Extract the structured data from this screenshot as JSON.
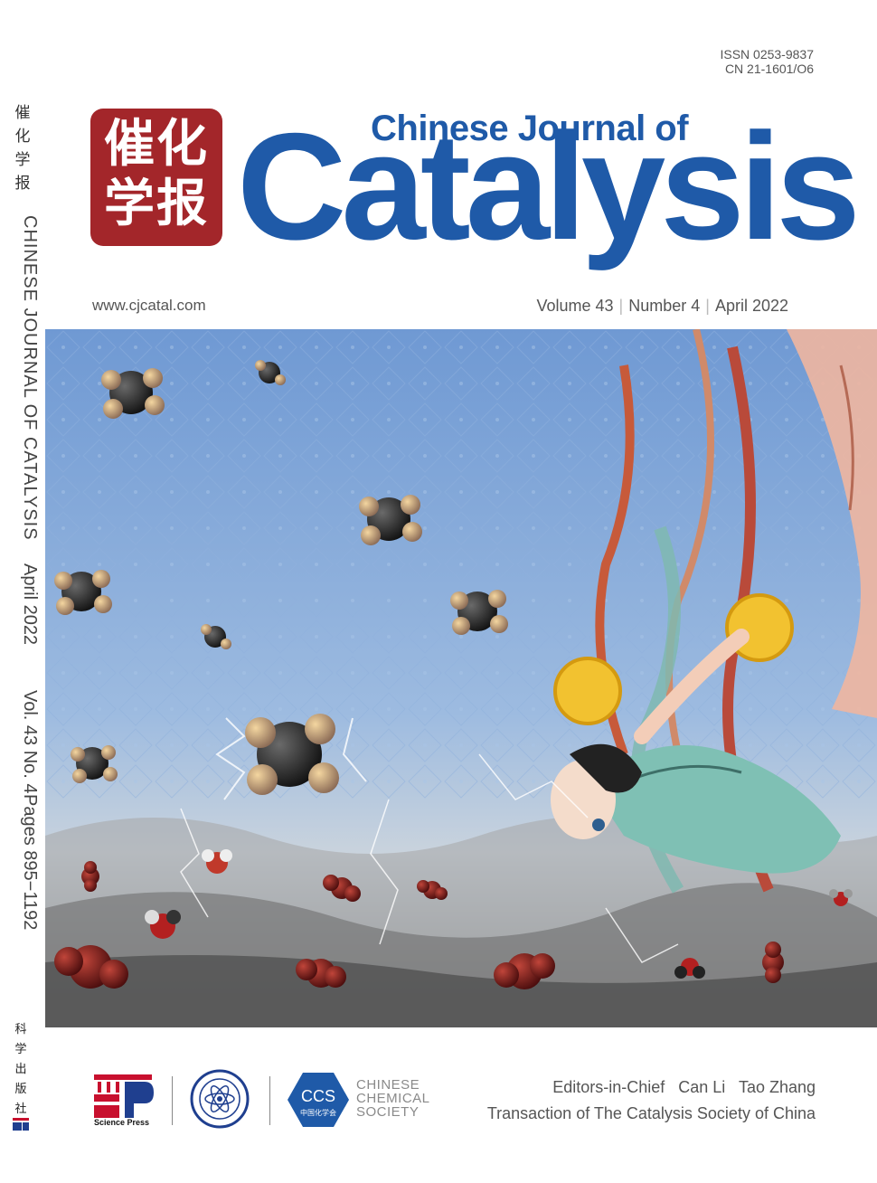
{
  "spine": {
    "chinese_title": "催\n化\n学\n报",
    "english_title": "CHINESE JOURNAL OF CATALYSIS",
    "date": "April 2022",
    "volume_issue": "Vol. 43 No. 4",
    "pages": "Pages 895−1192",
    "publisher_cn": "科\n学\n出\n版\n社"
  },
  "header": {
    "issn": "ISSN  0253-9837",
    "cn": "CN  21-1601/O6",
    "seal_text": "催化\n学报",
    "title_small": "Chinese Journal of",
    "title_big": "Catalysis",
    "url": "www.cjcatal.com",
    "volume": "Volume 43",
    "number": "Number 4",
    "date": "April 2022"
  },
  "art": {
    "molecules": [
      "C2H4",
      "CH4",
      "C2H4",
      "C2H4",
      "C2H4",
      "C2H4",
      "C2H4",
      "C2H4",
      "CO2",
      "H2O",
      "H2O",
      "CO2",
      "CO2",
      "CO2",
      "CO2",
      "CO2",
      "CO2",
      "H2O",
      "CO2"
    ]
  },
  "footer": {
    "science_press": "Science Press",
    "ccs_abbr": "CCS",
    "ccs_cn": "中国化学会",
    "ccs_name": "CHINESE\nCHEMICAL\nSOCIETY",
    "editors": "Editors-in-Chief   Can Li   Tao Zhang",
    "transaction": "Transaction of The Catalysis Society of China"
  },
  "colors": {
    "brand_blue": "#1f5aa8",
    "seal_red": "#a3262a",
    "sky": "#7fa6d8"
  }
}
